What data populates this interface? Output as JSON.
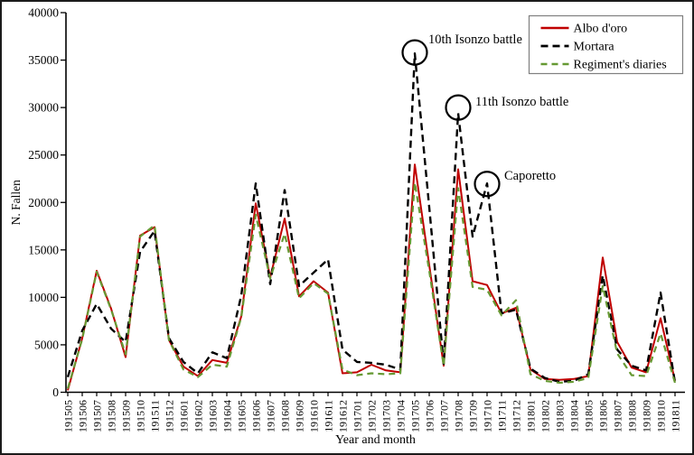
{
  "chart_data": {
    "type": "line",
    "title": "",
    "xlabel": "Year and month",
    "ylabel": "N. Fallen",
    "ylim": [
      0,
      40000
    ],
    "ytick_step": 5000,
    "grid": false,
    "legend_position": "top-right",
    "categories": [
      "191505",
      "191506",
      "191507",
      "191508",
      "191509",
      "191510",
      "191511",
      "191512",
      "191601",
      "191602",
      "191603",
      "191604",
      "191605",
      "191606",
      "191607",
      "191608",
      "191609",
      "191610",
      "191611",
      "191612",
      "191701",
      "191702",
      "191703",
      "191704",
      "191705",
      "191706",
      "191707",
      "191708",
      "191709",
      "191710",
      "191711",
      "191712",
      "191801",
      "191802",
      "191803",
      "191804",
      "191805",
      "191806",
      "191807",
      "191808",
      "191809",
      "191810",
      "191811"
    ],
    "series": [
      {
        "name": "Albo d'oro",
        "color": "#c00000",
        "dash": null,
        "width": 2,
        "values": [
          200,
          5700,
          12800,
          8800,
          3700,
          16500,
          17400,
          5500,
          2700,
          1700,
          3400,
          3100,
          8000,
          19900,
          12100,
          18300,
          10100,
          11700,
          10500,
          2000,
          2100,
          2900,
          2300,
          2100,
          24000,
          13400,
          2800,
          23500,
          11700,
          11300,
          8300,
          8900,
          2400,
          1400,
          1300,
          1400,
          1700,
          14200,
          5300,
          2600,
          2100,
          7800,
          1200
        ]
      },
      {
        "name": "Mortara",
        "color": "#000000",
        "dash": [
          8,
          5
        ],
        "width": 2.4,
        "values": [
          1600,
          6500,
          9300,
          6700,
          5300,
          14800,
          17000,
          5700,
          3200,
          2000,
          4200,
          3600,
          10200,
          22000,
          11400,
          21300,
          11200,
          12600,
          14000,
          4500,
          3200,
          3100,
          2900,
          2400,
          35700,
          19500,
          3000,
          29400,
          16400,
          22000,
          8300,
          8700,
          2500,
          1500,
          1100,
          1200,
          1900,
          12300,
          4500,
          2800,
          2300,
          10500,
          1000
        ]
      },
      {
        "name": "Regiment's diaries",
        "color": "#669933",
        "dash": [
          7,
          5
        ],
        "width": 2.2,
        "values": [
          400,
          5600,
          12700,
          8700,
          4000,
          16400,
          17600,
          5500,
          2400,
          1600,
          2900,
          2700,
          7900,
          18700,
          12000,
          16700,
          9900,
          11500,
          10400,
          2400,
          1800,
          2000,
          1900,
          2000,
          22100,
          12800,
          2800,
          21500,
          11100,
          10800,
          8100,
          9700,
          1900,
          1200,
          1000,
          1100,
          1500,
          11200,
          4100,
          1800,
          1700,
          6200,
          1000
        ]
      }
    ],
    "annotations": [
      {
        "label": "10th Isonzo battle",
        "month": "191705",
        "circle_value": 35800,
        "text_dx": 15,
        "text_dy": -10
      },
      {
        "label": "11th Isonzo battle",
        "month": "191708",
        "circle_value": 30000,
        "text_dx": 19,
        "text_dy": -2
      },
      {
        "label": "Caporetto",
        "month": "191710",
        "circle_value": 21950,
        "text_dx": 19,
        "text_dy": -5
      }
    ],
    "ytick_labels": [
      "0",
      "5000",
      "10000",
      "15000",
      "20000",
      "25000",
      "30000",
      "35000",
      "40000"
    ]
  }
}
